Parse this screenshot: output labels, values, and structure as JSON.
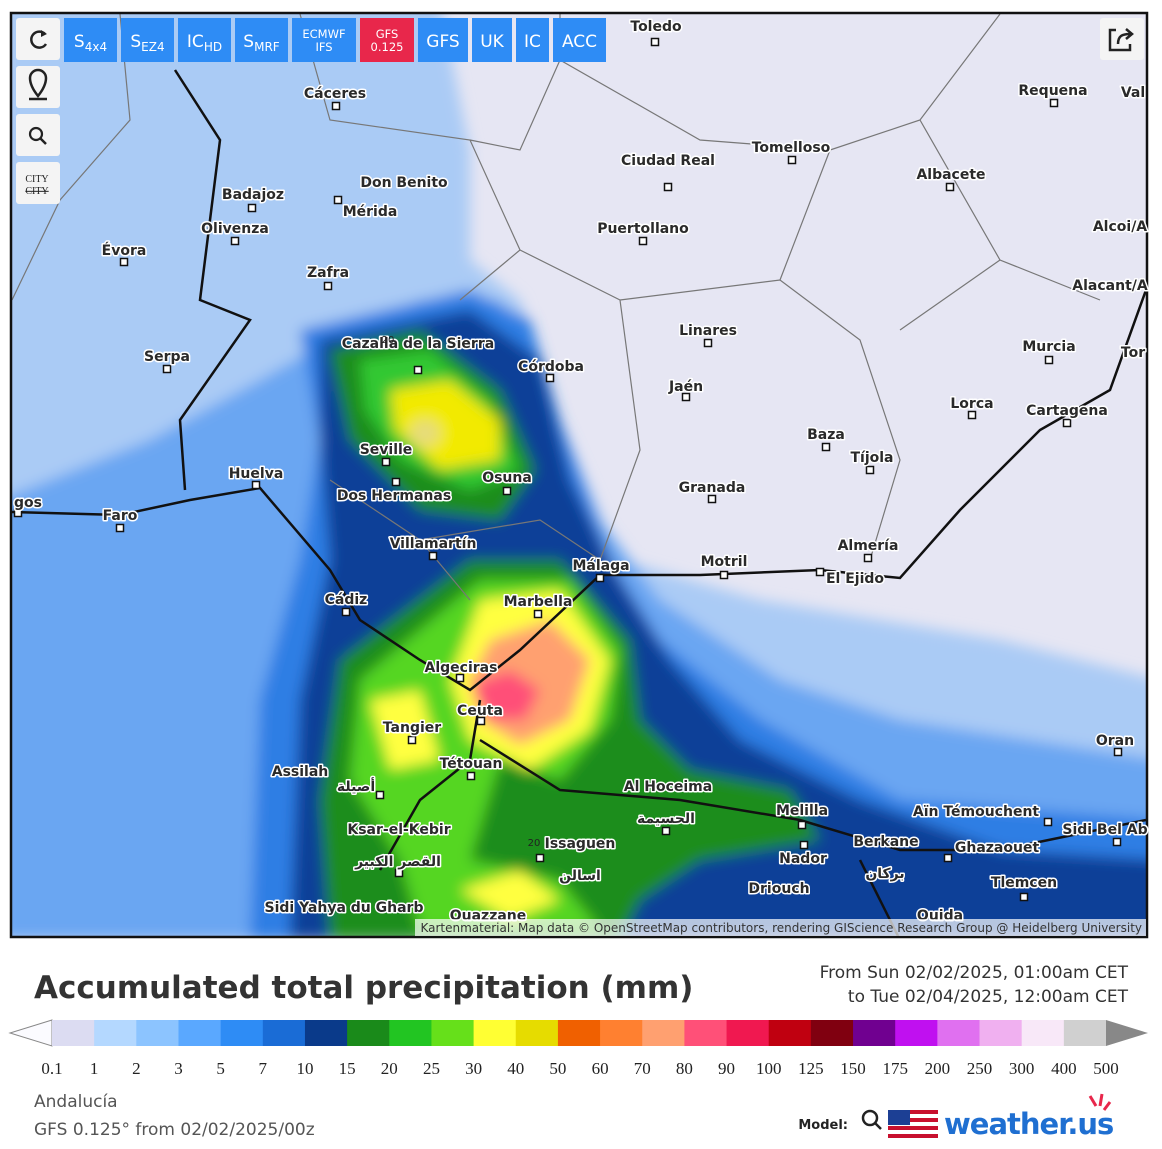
{
  "toolbar": {
    "buttons": [
      {
        "main": "S",
        "sub": "4x4"
      },
      {
        "main": "S",
        "sub": "EZ4"
      },
      {
        "main": "IC",
        "sub": "HD"
      },
      {
        "main": "S",
        "sub": "MRF"
      },
      {
        "main": "ECMWF IFS"
      },
      {
        "main": "GFS 0.125",
        "active": true
      },
      {
        "main": "GFS"
      },
      {
        "main": "UK"
      },
      {
        "main": "IC"
      },
      {
        "main": "ACC"
      }
    ],
    "city_toggle": "CITY"
  },
  "map": {
    "cities": [
      "Toledo",
      "Cáceres",
      "Requena",
      "Val",
      "Ciudad Real",
      "Tomelloso",
      "Don Benito",
      "Badajoz",
      "Mérida",
      "Albacete",
      "Puertollano",
      "Olivenza",
      "Évora",
      "Alcoi/A",
      "Zafra",
      "Alacant/A",
      "Linares",
      "Cazalla de la Sierra",
      "Córdoba",
      "Murcia",
      "Serpa",
      "Tor",
      "Jaén",
      "Lorca",
      "Cartagena",
      "Baza",
      "Seville",
      "Tíjola",
      "Huelva",
      "Osuna",
      "Granada",
      "Dos Hermanas",
      "gos",
      "Faro",
      "Villamartín",
      "Almería",
      "Málaga",
      "Motril",
      "El Ejido",
      "Cádiz",
      "Marbella",
      "Algeciras",
      "Ceuta",
      "Tangier",
      "Oran",
      "Assilah",
      "Tétouan",
      "Al Hoceima",
      "Melilla",
      "Aïn Témouchent",
      "Ksar-el-Kebir",
      "Sidi Bel Ab",
      "Issaguen",
      "Berkane",
      "Ghazaouet",
      "Nador",
      "Tlemcen",
      "Driouch",
      "Sidi Yahya du Gharb",
      "Ouida",
      "Ouazzane"
    ],
    "local_names": [
      "أصيلة",
      "الحسيمة",
      "القصر الكبير",
      "اسالن",
      "بركان"
    ],
    "contour_labels": [
      "20",
      "20"
    ],
    "attribution": "Kartenmaterial: Map data © OpenStreetMap contributors, rendering GIScience Research Group @ Heidelberg University"
  },
  "legend": {
    "title": "Accumulated total precipitation (mm)",
    "period_from": "From Sun 02/02/2025, 01:00am CET",
    "period_to": "to Tue 02/04/2025, 12:00am CET",
    "scale": {
      "labels": [
        0.1,
        1,
        2,
        3,
        5,
        7,
        10,
        15,
        20,
        25,
        30,
        40,
        50,
        60,
        70,
        80,
        90,
        100,
        125,
        150,
        175,
        200,
        250,
        300,
        400,
        500
      ],
      "colors": [
        "#dcdcf2",
        "#b4d8ff",
        "#8cc4ff",
        "#5aa8ff",
        "#2e8cf5",
        "#1a6cd6",
        "#0a3a8a",
        "#1a8a1a",
        "#22c522",
        "#66e01a",
        "#ffff33",
        "#e6dc00",
        "#f06000",
        "#ff8030",
        "#ffa070",
        "#ff5078",
        "#f01850",
        "#c00010",
        "#800010",
        "#700090",
        "#c010f0",
        "#e070f0",
        "#f0b0f0",
        "#f8e8f8",
        "#d0d0d0"
      ]
    }
  },
  "footer": {
    "region": "Andalucía",
    "run": "GFS 0.125° from 02/02/2025/00z",
    "model_label": "Model:",
    "logo": "weather.us"
  }
}
